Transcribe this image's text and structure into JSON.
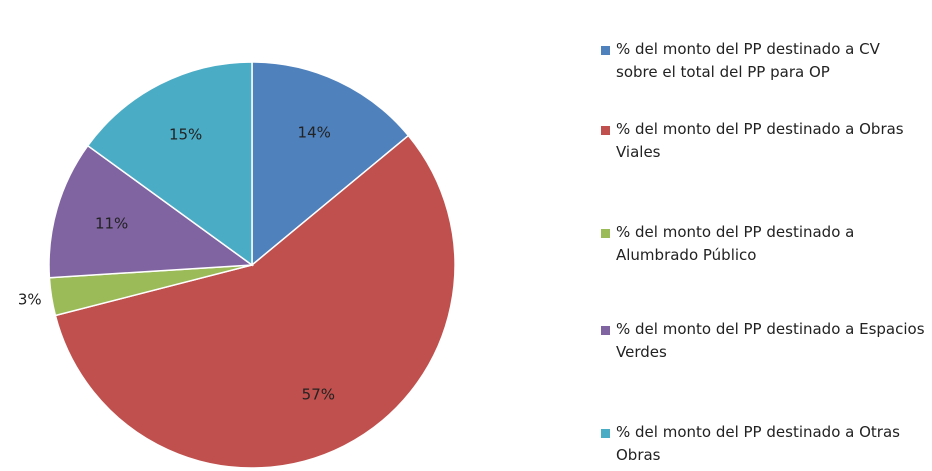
{
  "chart_data": {
    "type": "pie",
    "categories": [
      "% del monto del PP destinado a CV sobre el total del PP para OP",
      "% del monto del PP destinado a Obras Viales",
      "% del monto del PP destinado a Alumbrado Público",
      "% del monto del PP destinado a Espacios Verdes",
      "% del monto del PP destinado a Otras Obras"
    ],
    "values": [
      14,
      57,
      3,
      11,
      15
    ],
    "value_labels": [
      "14%",
      "57%",
      "3%",
      "11%",
      "15%"
    ],
    "colors": [
      "#4f81bd",
      "#c0504d",
      "#9bbb59",
      "#8064a2",
      "#4bacc6"
    ],
    "legend": "right"
  }
}
